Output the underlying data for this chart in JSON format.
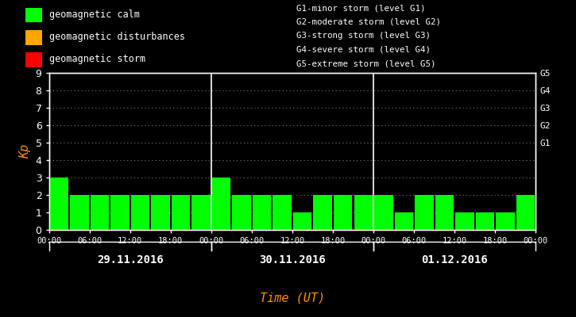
{
  "background_color": "#000000",
  "plot_bg_color": "#000000",
  "bar_color": "#00ff00",
  "title_color": "#ff8c00",
  "text_color": "#ffffff",
  "ylabel_color": "#ff8c00",
  "xlabel": "Time (UT)",
  "ylabel": "Kp",
  "ylim": [
    0,
    9
  ],
  "yticks": [
    0,
    1,
    2,
    3,
    4,
    5,
    6,
    7,
    8,
    9
  ],
  "right_labels": [
    "G5",
    "G4",
    "G3",
    "G2",
    "G1"
  ],
  "right_label_yvals": [
    9,
    8,
    7,
    6,
    5
  ],
  "days": [
    "29.11.2016",
    "30.11.2016",
    "01.12.2016"
  ],
  "kp_values": [
    [
      3,
      2,
      2,
      2,
      2,
      2,
      2,
      2
    ],
    [
      3,
      2,
      2,
      2,
      1,
      2,
      2,
      2
    ],
    [
      2,
      1,
      2,
      2,
      1,
      1,
      1,
      2
    ]
  ],
  "legend_entries": [
    {
      "label": "geomagnetic calm",
      "color": "#00ff00"
    },
    {
      "label": "geomagnetic disturbances",
      "color": "#ffa500"
    },
    {
      "label": "geomagnetic storm",
      "color": "#ff0000"
    }
  ],
  "storm_labels": [
    "G1-minor storm (level G1)",
    "G2-moderate storm (level G2)",
    "G3-strong storm (level G3)",
    "G4-severe storm (level G4)",
    "G5-extreme storm (level G5)"
  ],
  "font_family": "monospace",
  "bar_width": 0.92,
  "separator_line_color": "#ffffff",
  "grid_color": "#ffffff",
  "grid_alpha": 0.5,
  "spine_color": "#ffffff"
}
